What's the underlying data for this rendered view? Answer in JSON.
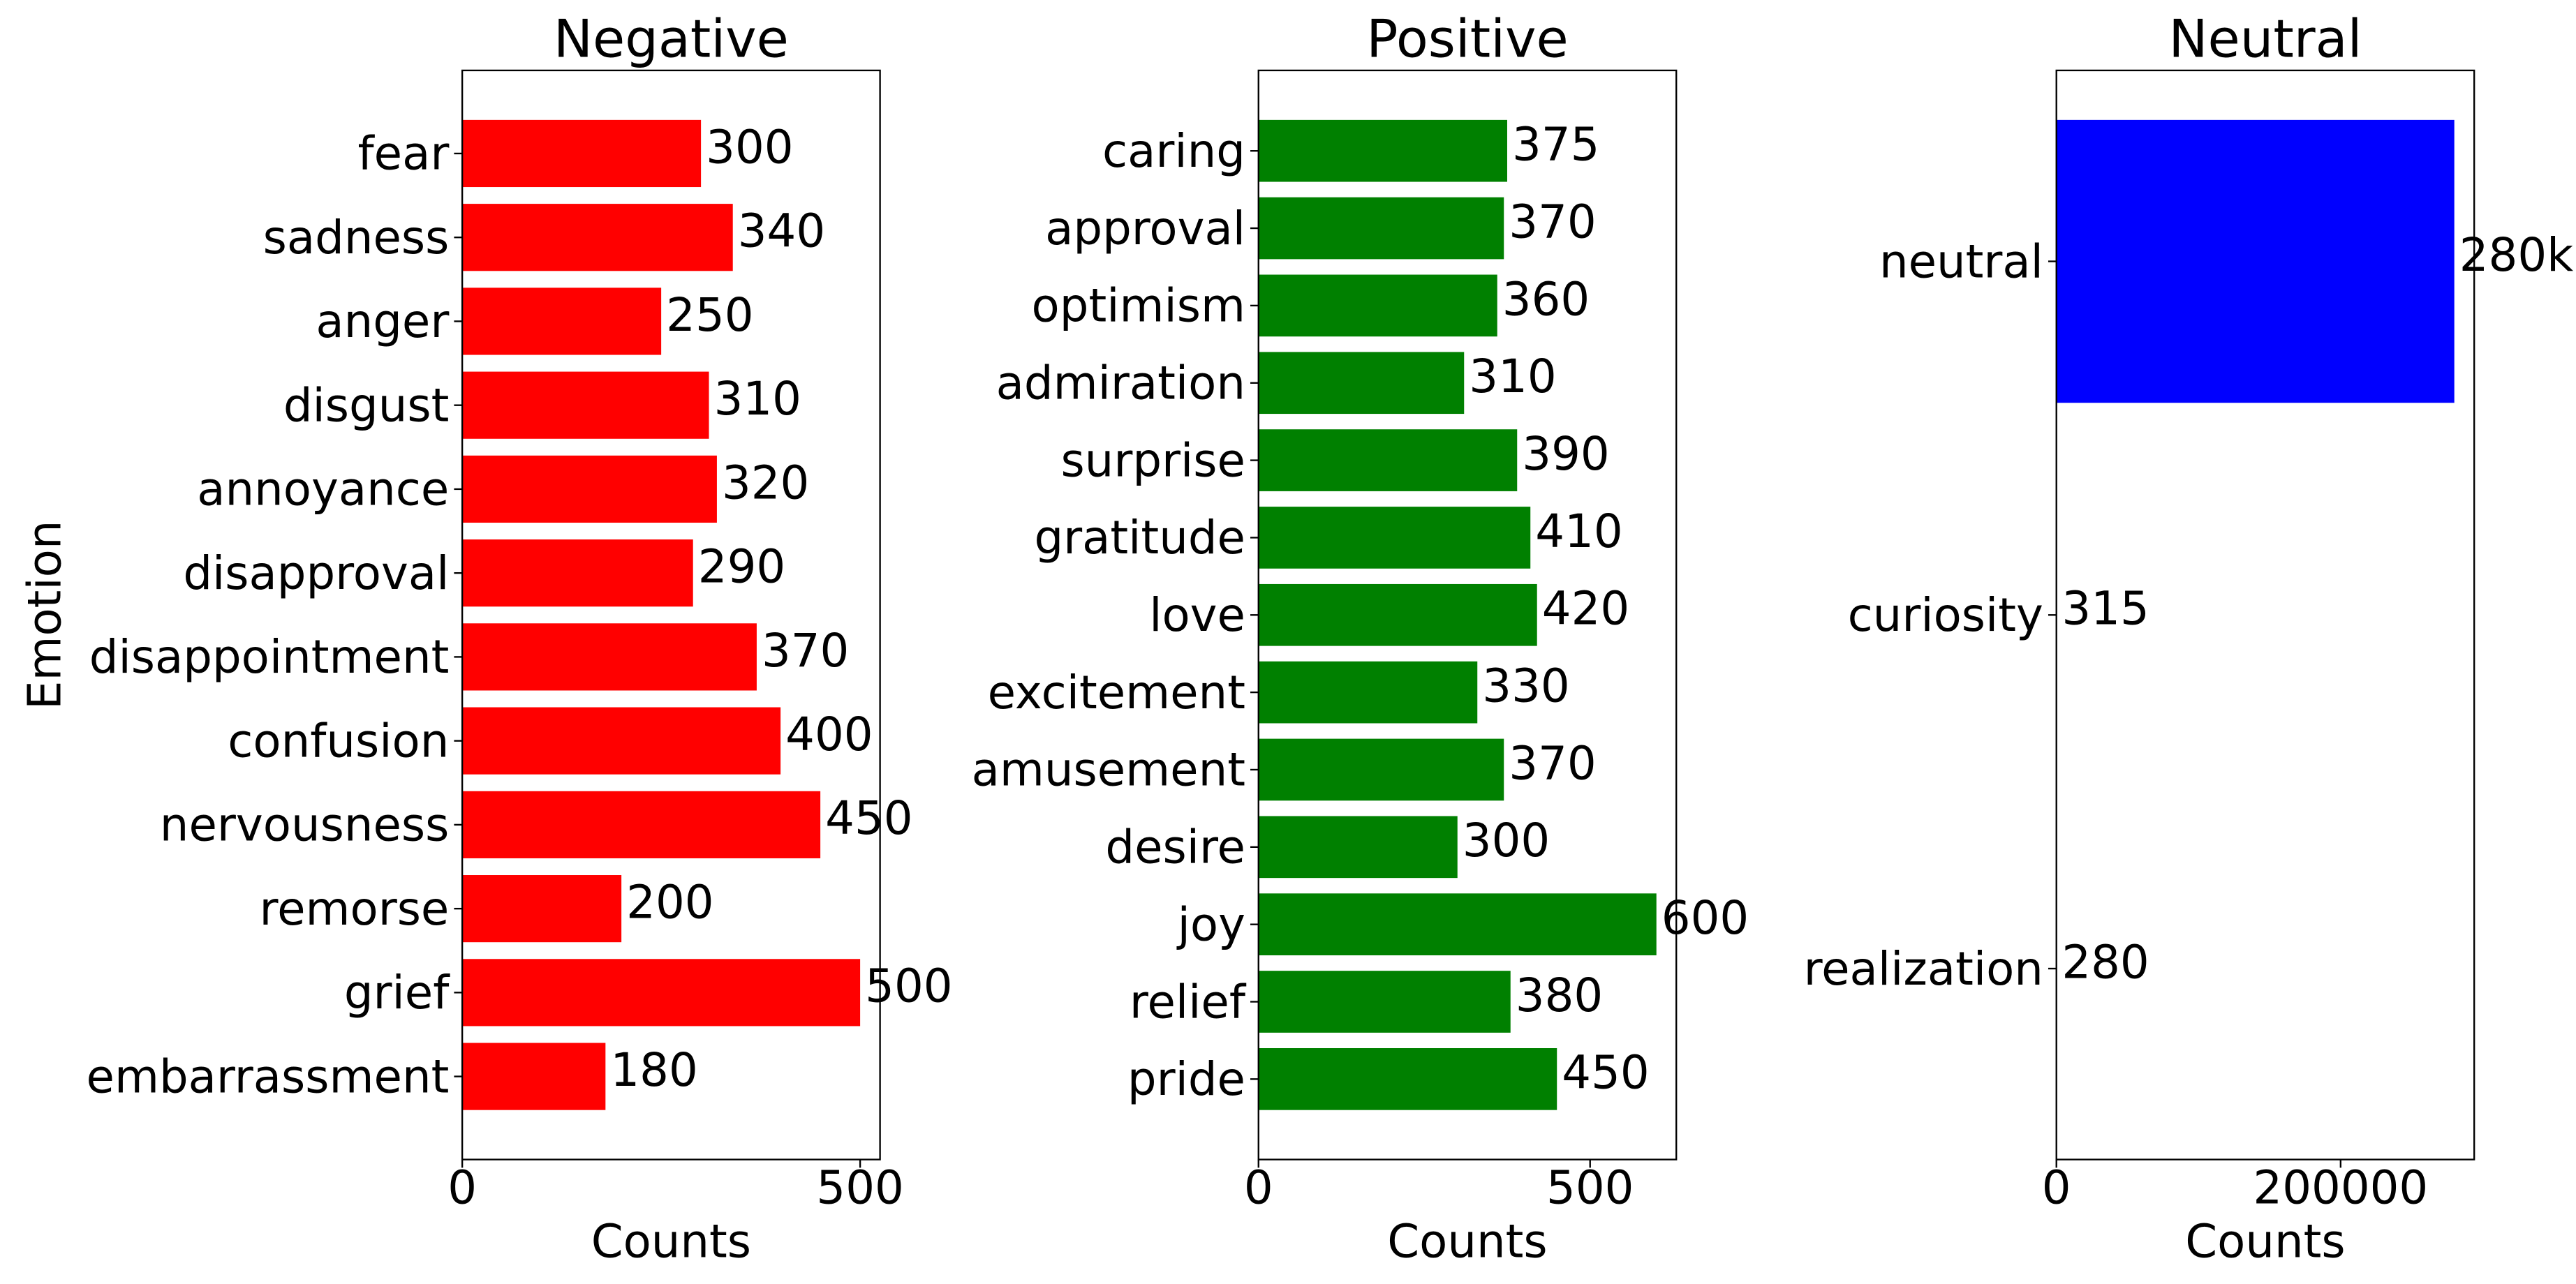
{
  "chart_data": [
    {
      "type": "barh",
      "title": "Negative",
      "xlabel": "Counts",
      "ylabel": "Emotion",
      "color": "#ff0000",
      "categories": [
        "fear",
        "sadness",
        "anger",
        "disgust",
        "annoyance",
        "disapproval",
        "disappointment",
        "confusion",
        "nervousness",
        "remorse",
        "grief",
        "embarrassment"
      ],
      "values": [
        300,
        340,
        250,
        310,
        320,
        290,
        370,
        400,
        450,
        200,
        500,
        180
      ],
      "xlim": [
        0,
        525
      ],
      "xticks": [
        0,
        500
      ]
    },
    {
      "type": "barh",
      "title": "Positive",
      "xlabel": "Counts",
      "color": "#008000",
      "categories": [
        "caring",
        "approval",
        "optimism",
        "admiration",
        "surprise",
        "gratitude",
        "love",
        "excitement",
        "amusement",
        "desire",
        "joy",
        "relief",
        "pride"
      ],
      "values": [
        375,
        370,
        360,
        310,
        390,
        410,
        420,
        330,
        370,
        300,
        600,
        380,
        450
      ],
      "xlim": [
        0,
        630
      ],
      "xticks": [
        0,
        500
      ]
    },
    {
      "type": "barh",
      "title": "Neutral",
      "xlabel": "Counts",
      "color": "#0000ff",
      "categories": [
        "neutral",
        "curiosity",
        "realization"
      ],
      "values": [
        280000,
        315,
        280
      ],
      "value_labels": [
        "280k",
        "315",
        "280"
      ],
      "xlim": [
        0,
        294000
      ],
      "xticks": [
        0,
        200000
      ]
    }
  ]
}
